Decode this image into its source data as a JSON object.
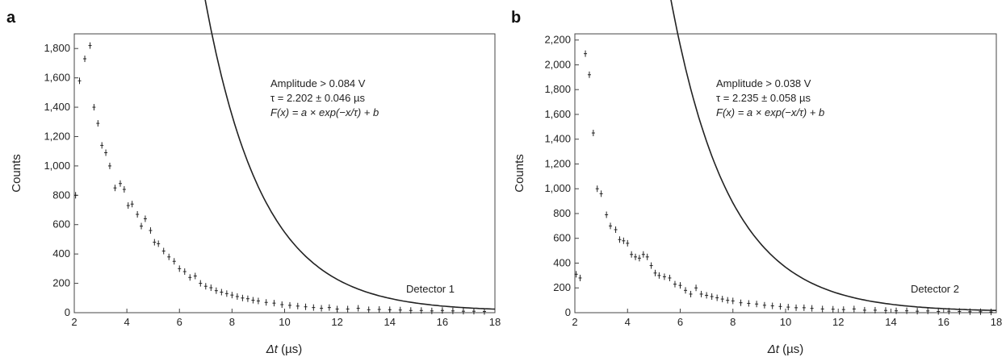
{
  "chart_data": [
    {
      "type": "scatter",
      "panel_label": "a",
      "xlabel_var": "Δt",
      "xlabel_unit": " (µs)",
      "ylabel": "Counts",
      "xlim": [
        2,
        18
      ],
      "ylim": [
        0,
        1900
      ],
      "xticks": [
        "2",
        "4",
        "6",
        "8",
        "10",
        "12",
        "14",
        "16",
        "18"
      ],
      "yticks": [
        "0",
        "200",
        "400",
        "600",
        "800",
        "1,000",
        "1,200",
        "1,400",
        "1,600",
        "1,800"
      ],
      "annotations": [
        "Amplitude > 0.084 V",
        "τ = 2.202 ± 0.046 µs",
        "F(x) = a × exp(−x/τ) + b"
      ],
      "detector_label": "Detector 1",
      "fit": {
        "tau": 2.202,
        "a": 50500,
        "b": 10,
        "x_from": 5.0,
        "x_to": 18
      },
      "series": [
        {
          "x": [
            2.05,
            2.2,
            2.4,
            2.6,
            2.75,
            2.9,
            3.05,
            3.2,
            3.35,
            3.55,
            3.75,
            3.9,
            4.05,
            4.2,
            4.4,
            4.55,
            4.7,
            4.9,
            5.05,
            5.2,
            5.4,
            5.6,
            5.8,
            6.0,
            6.2,
            6.4,
            6.6,
            6.8,
            7.0,
            7.2,
            7.4,
            7.6,
            7.8,
            8.0,
            8.2,
            8.4,
            8.6,
            8.8,
            9.0,
            9.3,
            9.6,
            9.9,
            10.2,
            10.5,
            10.8,
            11.1,
            11.4,
            11.7,
            12.0,
            12.4,
            12.8,
            13.2,
            13.6,
            14.0,
            14.4,
            14.8,
            15.2,
            15.6,
            16.0,
            16.4,
            16.8,
            17.2,
            17.6
          ],
          "y": [
            800,
            1580,
            1730,
            1820,
            1400,
            1290,
            1140,
            1090,
            1000,
            850,
            880,
            840,
            730,
            740,
            670,
            590,
            640,
            560,
            480,
            470,
            420,
            380,
            350,
            300,
            280,
            240,
            250,
            200,
            180,
            170,
            150,
            140,
            130,
            120,
            110,
            100,
            95,
            85,
            80,
            70,
            65,
            55,
            50,
            45,
            40,
            35,
            30,
            35,
            25,
            25,
            30,
            20,
            22,
            20,
            18,
            15,
            15,
            12,
            15,
            12,
            10,
            10,
            8
          ]
        }
      ]
    },
    {
      "type": "scatter",
      "panel_label": "b",
      "xlabel_var": "Δt",
      "xlabel_unit": " (µs)",
      "ylabel": "Counts",
      "xlim": [
        2,
        18
      ],
      "ylim": [
        0,
        2250
      ],
      "xticks": [
        "2",
        "4",
        "6",
        "8",
        "10",
        "12",
        "14",
        "16",
        "18"
      ],
      "yticks": [
        "0",
        "200",
        "400",
        "600",
        "800",
        "1,000",
        "1,200",
        "1,400",
        "1,600",
        "1,800",
        "2,000",
        "2,200"
      ],
      "annotations": [
        "Amplitude > 0.038 V",
        "τ = 2.235 ± 0.058 µs",
        "F(x) = a × exp(−x/τ) + b"
      ],
      "detector_label": "Detector 2",
      "fit": {
        "tau": 2.235,
        "a": 31500,
        "b": 8,
        "x_from": 5.0,
        "x_to": 18
      },
      "series": [
        {
          "x": [
            2.05,
            2.2,
            2.4,
            2.55,
            2.7,
            2.85,
            3.0,
            3.2,
            3.35,
            3.55,
            3.7,
            3.85,
            4.0,
            4.15,
            4.3,
            4.45,
            4.6,
            4.75,
            4.9,
            5.05,
            5.2,
            5.4,
            5.6,
            5.8,
            6.0,
            6.2,
            6.4,
            6.6,
            6.8,
            7.0,
            7.2,
            7.4,
            7.6,
            7.8,
            8.0,
            8.3,
            8.6,
            8.9,
            9.2,
            9.5,
            9.8,
            10.1,
            10.4,
            10.7,
            11.0,
            11.4,
            11.8,
            12.2,
            12.6,
            13.0,
            13.4,
            13.8,
            14.2,
            14.6,
            15.0,
            15.4,
            15.8,
            16.2,
            16.6,
            17.0,
            17.4,
            17.8
          ],
          "y": [
            310,
            280,
            2090,
            1920,
            1450,
            1000,
            960,
            790,
            700,
            670,
            590,
            580,
            560,
            470,
            450,
            440,
            470,
            450,
            380,
            320,
            300,
            290,
            280,
            230,
            220,
            180,
            150,
            200,
            150,
            140,
            130,
            120,
            110,
            100,
            95,
            80,
            75,
            70,
            60,
            55,
            50,
            45,
            40,
            40,
            35,
            30,
            28,
            25,
            30,
            20,
            20,
            18,
            15,
            15,
            12,
            14,
            10,
            12,
            10,
            8,
            8,
            6
          ]
        }
      ]
    }
  ]
}
